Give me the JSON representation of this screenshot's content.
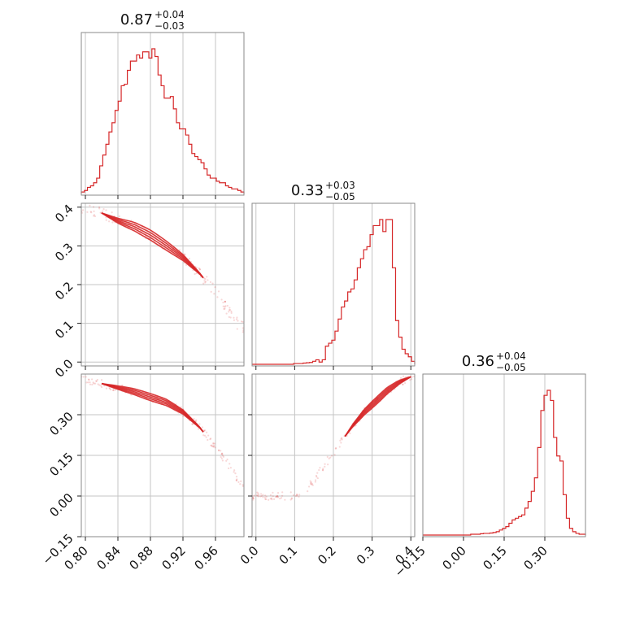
{
  "chart_data": {
    "type": "corner",
    "color": "#d62728",
    "grid": true,
    "parameters": [
      {
        "title": {
          "value": "0.87",
          "plus": "+0.04",
          "minus": "−0.03"
        },
        "range": [
          0.795,
          0.995
        ],
        "ticks": [
          0.8,
          0.84,
          0.88,
          0.92,
          0.96
        ],
        "tick_labels": [
          "0.80",
          "0.84",
          "0.88",
          "0.92",
          "0.96"
        ],
        "hist": [
          0.01,
          0.02,
          0.04,
          0.05,
          0.07,
          0.1,
          0.18,
          0.25,
          0.32,
          0.4,
          0.46,
          0.54,
          0.6,
          0.7,
          0.71,
          0.8,
          0.86,
          0.86,
          0.9,
          0.88,
          0.92,
          0.92,
          0.88,
          0.94,
          0.89,
          0.77,
          0.7,
          0.62,
          0.62,
          0.63,
          0.55,
          0.46,
          0.42,
          0.42,
          0.38,
          0.32,
          0.26,
          0.24,
          0.22,
          0.2,
          0.16,
          0.12,
          0.1,
          0.1,
          0.08,
          0.07,
          0.07,
          0.05,
          0.04,
          0.03,
          0.03,
          0.02,
          0.01
        ]
      },
      {
        "title": {
          "value": "0.33",
          "plus": "+0.03",
          "minus": "−0.05"
        },
        "range": [
          -0.01,
          0.41
        ],
        "ticks": [
          0.0,
          0.1,
          0.2,
          0.3,
          0.4
        ],
        "tick_labels": [
          "0.0",
          "0.1",
          "0.2",
          "0.3",
          "0.4"
        ],
        "y_tick_labels": [
          "0.0",
          "0.1",
          "0.2",
          "0.3",
          "0.4"
        ],
        "hist": [
          0,
          0,
          0,
          0,
          0,
          0,
          0,
          0,
          0,
          0,
          0,
          0,
          0,
          0.005,
          0.005,
          0.005,
          0.008,
          0.01,
          0.012,
          0.02,
          0.03,
          0.015,
          0.03,
          0.12,
          0.14,
          0.16,
          0.22,
          0.3,
          0.38,
          0.42,
          0.48,
          0.5,
          0.56,
          0.64,
          0.7,
          0.76,
          0.78,
          0.86,
          0.92,
          0.92,
          0.96,
          0.88,
          0.96,
          0.96,
          0.64,
          0.29,
          0.18,
          0.1,
          0.07,
          0.05,
          0.02
        ]
      },
      {
        "title": {
          "value": "0.36",
          "plus": "+0.04",
          "minus": "−0.05"
        },
        "range": [
          -0.15,
          0.45
        ],
        "ticks": [
          -0.15,
          0.0,
          0.15,
          0.3
        ],
        "tick_labels": [
          "−0.15",
          "0.00",
          "0.15",
          "0.30"
        ],
        "y_tick_labels": [
          "−0.15",
          "0.00",
          "0.15",
          "0.30"
        ],
        "hist": [
          0,
          0,
          0,
          0,
          0,
          0,
          0,
          0,
          0,
          0,
          0,
          0,
          0,
          0,
          0,
          0.005,
          0.005,
          0.005,
          0.008,
          0.01,
          0.01,
          0.012,
          0.015,
          0.02,
          0.03,
          0.04,
          0.05,
          0.07,
          0.09,
          0.1,
          0.11,
          0.12,
          0.16,
          0.2,
          0.26,
          0.34,
          0.52,
          0.74,
          0.83,
          0.86,
          0.8,
          0.58,
          0.47,
          0.44,
          0.24,
          0.1,
          0.04,
          0.02,
          0.01,
          0.005,
          0.005
        ]
      }
    ],
    "pairs": [
      {
        "x": 0,
        "y": 1,
        "trend": [
          [
            0.8,
            0.4
          ],
          [
            0.82,
            0.385
          ],
          [
            0.84,
            0.365
          ],
          [
            0.86,
            0.35
          ],
          [
            0.88,
            0.328
          ],
          [
            0.9,
            0.3
          ],
          [
            0.92,
            0.27
          ],
          [
            0.94,
            0.23
          ],
          [
            0.96,
            0.18
          ],
          [
            0.98,
            0.12
          ],
          [
            0.99,
            0.09
          ]
        ],
        "core": [
          0.82,
          0.945
        ]
      },
      {
        "x": 0,
        "y": 2,
        "trend": [
          [
            0.8,
            0.43
          ],
          [
            0.82,
            0.415
          ],
          [
            0.84,
            0.4
          ],
          [
            0.86,
            0.385
          ],
          [
            0.88,
            0.365
          ],
          [
            0.9,
            0.345
          ],
          [
            0.92,
            0.31
          ],
          [
            0.94,
            0.255
          ],
          [
            0.96,
            0.18
          ],
          [
            0.98,
            0.1
          ],
          [
            0.99,
            0.05
          ]
        ],
        "core": [
          0.82,
          0.945
        ]
      },
      {
        "x": 1,
        "y": 2,
        "trend": [
          [
            0.12,
            0.0
          ],
          [
            0.16,
            0.08
          ],
          [
            0.2,
            0.16
          ],
          [
            0.22,
            0.2
          ],
          [
            0.25,
            0.26
          ],
          [
            0.28,
            0.31
          ],
          [
            0.31,
            0.35
          ],
          [
            0.34,
            0.39
          ],
          [
            0.37,
            0.42
          ],
          [
            0.4,
            0.44
          ]
        ],
        "core": [
          0.23,
          0.4
        ]
      }
    ]
  }
}
